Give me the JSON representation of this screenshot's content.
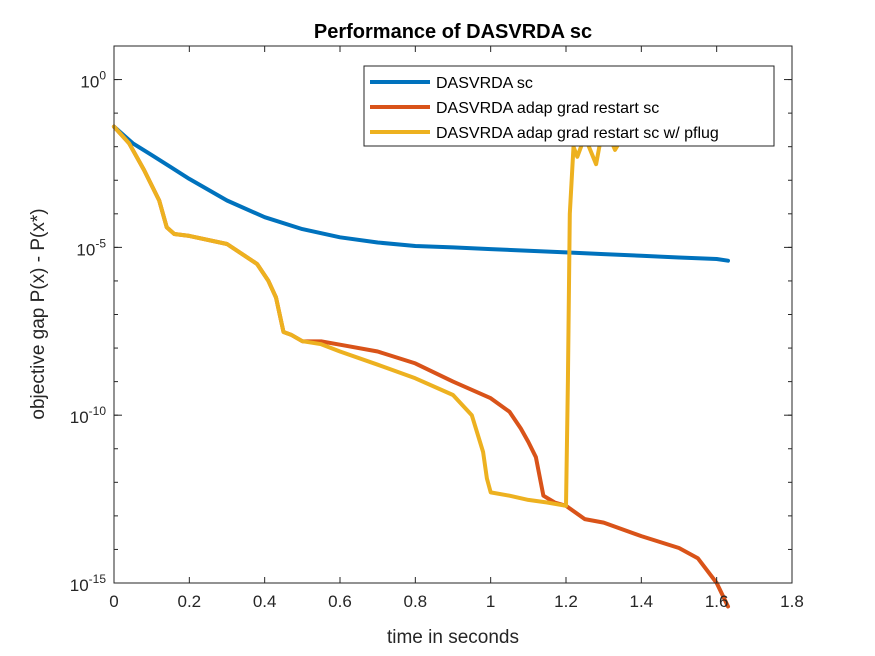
{
  "chart_data": {
    "type": "line",
    "title": "Performance of DASVRDA sc",
    "xlabel": "time in seconds",
    "ylabel": "objective gap P(x) - P(x*)",
    "xlim": [
      0,
      1.8
    ],
    "ylim": [
      1e-15,
      10.0
    ],
    "yscale": "log",
    "grid": false,
    "legend_position": "top-right",
    "x_ticks": [
      "0",
      "0.2",
      "0.4",
      "0.6",
      "0.8",
      "1",
      "1.2",
      "1.4",
      "1.6",
      "1.8"
    ],
    "y_ticks": [
      {
        "base": "10",
        "exp": "-15",
        "value": 1e-15
      },
      {
        "base": "10",
        "exp": "-10",
        "value": 1e-10
      },
      {
        "base": "10",
        "exp": "-5",
        "value": 1e-05
      },
      {
        "base": "10",
        "exp": "0",
        "value": 1
      }
    ],
    "series": [
      {
        "name": "DASVRDA sc",
        "color": "#0072BD",
        "points": [
          [
            0,
            0.0398
          ],
          [
            0.05,
            0.0126
          ],
          [
            0.1,
            0.0056
          ],
          [
            0.15,
            0.0025
          ],
          [
            0.2,
            0.0011
          ],
          [
            0.3,
            0.00025
          ],
          [
            0.4,
            7.9e-05
          ],
          [
            0.5,
            3.5e-05
          ],
          [
            0.6,
            2e-05
          ],
          [
            0.7,
            1.4e-05
          ],
          [
            0.8,
            1.1e-05
          ],
          [
            0.9,
            1e-05
          ],
          [
            1.0,
            8.9e-06
          ],
          [
            1.1,
            7.9e-06
          ],
          [
            1.2,
            7.1e-06
          ],
          [
            1.3,
            6.3e-06
          ],
          [
            1.4,
            5.6e-06
          ],
          [
            1.5,
            5e-06
          ],
          [
            1.6,
            4.5e-06
          ],
          [
            1.63,
            4e-06
          ]
        ]
      },
      {
        "name": "DASVRDA adap grad restart sc",
        "color": "#D95319",
        "points": [
          [
            0,
            0.0398
          ],
          [
            0.04,
            0.0126
          ],
          [
            0.08,
            0.002
          ],
          [
            0.12,
            0.00025
          ],
          [
            0.14,
            4e-05
          ],
          [
            0.16,
            2.5e-05
          ],
          [
            0.2,
            2.2e-05
          ],
          [
            0.3,
            1.26e-05
          ],
          [
            0.38,
            3.2e-06
          ],
          [
            0.41,
            1e-06
          ],
          [
            0.43,
            3.2e-07
          ],
          [
            0.45,
            3e-08
          ],
          [
            0.47,
            2.5e-08
          ],
          [
            0.5,
            1.6e-08
          ],
          [
            0.55,
            1.58e-08
          ],
          [
            0.6,
            1.26e-08
          ],
          [
            0.7,
            7.9e-09
          ],
          [
            0.8,
            3.5e-09
          ],
          [
            0.9,
            1e-09
          ],
          [
            1.0,
            3.2e-10
          ],
          [
            1.05,
            1.26e-10
          ],
          [
            1.08,
            4e-11
          ],
          [
            1.1,
            1.6e-11
          ],
          [
            1.12,
            5.6e-12
          ],
          [
            1.14,
            4e-13
          ],
          [
            1.17,
            2.5e-13
          ],
          [
            1.2,
            2e-13
          ],
          [
            1.25,
            8e-14
          ],
          [
            1.3,
            6.3e-14
          ],
          [
            1.4,
            2.5e-14
          ],
          [
            1.5,
            1.1e-14
          ],
          [
            1.55,
            5.5e-15
          ],
          [
            1.6,
            1e-15
          ],
          [
            1.63,
            2e-16
          ]
        ]
      },
      {
        "name": "DASVRDA adap grad restart sc w/ pflug",
        "color": "#EDB120",
        "points": [
          [
            0,
            0.0398
          ],
          [
            0.04,
            0.0126
          ],
          [
            0.08,
            0.002
          ],
          [
            0.12,
            0.00025
          ],
          [
            0.14,
            4e-05
          ],
          [
            0.16,
            2.5e-05
          ],
          [
            0.2,
            2.2e-05
          ],
          [
            0.3,
            1.26e-05
          ],
          [
            0.38,
            3.2e-06
          ],
          [
            0.41,
            1e-06
          ],
          [
            0.43,
            3.2e-07
          ],
          [
            0.45,
            3e-08
          ],
          [
            0.47,
            2.5e-08
          ],
          [
            0.5,
            1.6e-08
          ],
          [
            0.55,
            1.3e-08
          ],
          [
            0.6,
            7.9e-09
          ],
          [
            0.7,
            3.2e-09
          ],
          [
            0.8,
            1.26e-09
          ],
          [
            0.9,
            4e-10
          ],
          [
            0.95,
            1e-10
          ],
          [
            0.98,
            8e-12
          ],
          [
            0.99,
            1.3e-12
          ],
          [
            1.0,
            5e-13
          ],
          [
            1.05,
            4e-13
          ],
          [
            1.1,
            3e-13
          ],
          [
            1.15,
            2.5e-13
          ],
          [
            1.2,
            2e-13
          ],
          [
            1.205,
            1e-09
          ],
          [
            1.21,
            0.0001
          ],
          [
            1.22,
            0.01
          ],
          [
            1.23,
            0.005
          ],
          [
            1.25,
            0.02
          ],
          [
            1.28,
            0.003
          ],
          [
            1.3,
            0.05
          ],
          [
            1.33,
            0.008
          ],
          [
            1.36,
            0.03
          ],
          [
            1.38,
            0.1
          ],
          [
            1.4,
            0.3
          ],
          [
            1.42,
            1.0
          ],
          [
            1.45,
            0.5
          ],
          [
            1.48,
            1.5
          ],
          [
            1.5,
            0.6
          ],
          [
            1.52,
            1.8
          ],
          [
            1.55,
            0.8
          ],
          [
            1.58,
            2.0
          ],
          [
            1.6,
            0.9
          ],
          [
            1.62,
            1.5
          ],
          [
            1.65,
            1.0
          ]
        ]
      }
    ]
  }
}
